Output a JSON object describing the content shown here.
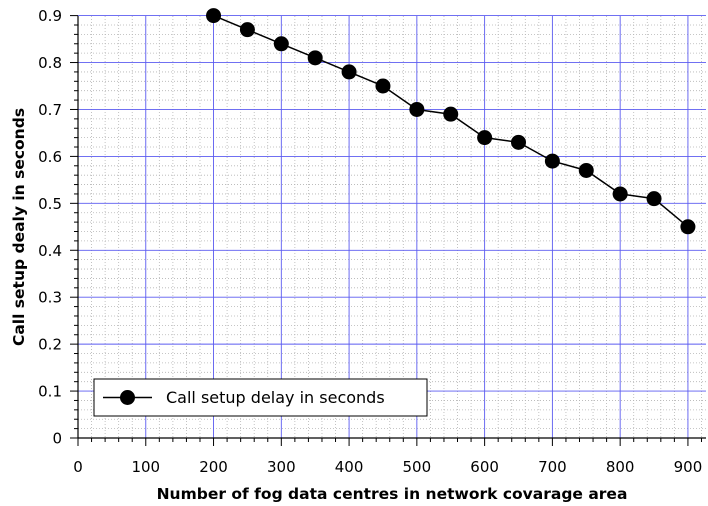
{
  "chart_data": {
    "type": "line",
    "xlabel": "Number of fog data centres in network covarage area",
    "ylabel": "Call setup dealy in seconds",
    "xlim": [
      0,
      925
    ],
    "ylim": [
      0,
      0.9
    ],
    "xticks": [
      0,
      100,
      200,
      300,
      400,
      500,
      600,
      700,
      800,
      900
    ],
    "xtick_labels": [
      "0",
      "100",
      "200",
      "300",
      "400",
      "500",
      "600",
      "700",
      "800",
      "900"
    ],
    "yticks": [
      0,
      0.1,
      0.2,
      0.3,
      0.4,
      0.5,
      0.6,
      0.7,
      0.8,
      0.9
    ],
    "ytick_labels": [
      "0",
      "0.1",
      "0.2",
      "0.3",
      "0.4",
      "0.5",
      "0.6",
      "0.7",
      "0.8",
      "0.9"
    ],
    "grid": true,
    "legend_position": "bottom-left",
    "series": [
      {
        "name": "Call setup delay in seconds",
        "color": "#000000",
        "x": [
          200,
          250,
          300,
          350,
          400,
          450,
          500,
          550,
          600,
          650,
          700,
          750,
          800,
          850,
          900
        ],
        "y": [
          0.9,
          0.87,
          0.84,
          0.81,
          0.78,
          0.75,
          0.7,
          0.69,
          0.64,
          0.63,
          0.59,
          0.57,
          0.52,
          0.51,
          0.45
        ]
      }
    ]
  }
}
